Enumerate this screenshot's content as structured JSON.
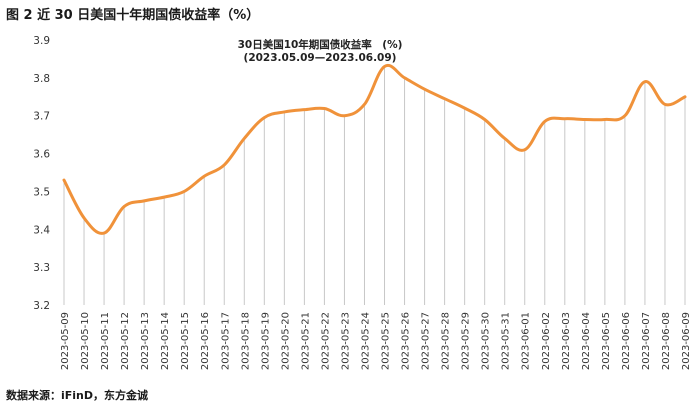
{
  "figure": {
    "title": "图 2  近 30 日美国十年期国债收益率（%）",
    "source": "数据来源：iFinD，东方金诚"
  },
  "chart_data": {
    "type": "line",
    "title": "30日美国10年期国债收益率　(%)",
    "subtitle": "(2023.05.09—2023.06.09)",
    "xlabel": "",
    "ylabel": "",
    "ylim": [
      3.2,
      3.9
    ],
    "yticks": [
      "3.2",
      "3.3",
      "3.4",
      "3.5",
      "3.6",
      "3.7",
      "3.8",
      "3.9"
    ],
    "grid": "vertical drop lines at each x value",
    "line_color": "#f0923a",
    "drop_line_color": "#c8c8c8",
    "series": [
      {
        "x": [
          "2023-05-09",
          "2023-05-10",
          "2023-05-11",
          "2023-05-12",
          "2023-05-13",
          "2023-05-14",
          "2023-05-15",
          "2023-05-16",
          "2023-05-17",
          "2023-05-18",
          "2023-05-19",
          "2023-05-20",
          "2023-05-21",
          "2023-05-22",
          "2023-05-23",
          "2023-05-24",
          "2023-05-25",
          "2023-05-26",
          "2023-05-27",
          "2023-05-28",
          "2023-05-29",
          "2023-05-30",
          "2023-05-31",
          "2023-06-01",
          "2023-06-02",
          "2023-06-03",
          "2023-06-04",
          "2023-06-05",
          "2023-06-06",
          "2023-06-07",
          "2023-06-08",
          "2023-06-09"
        ],
        "values": [
          3.53,
          3.43,
          3.39,
          3.46,
          3.475,
          3.485,
          3.5,
          3.54,
          3.57,
          3.64,
          3.695,
          3.71,
          3.716,
          3.719,
          3.7,
          3.73,
          3.83,
          3.8,
          3.77,
          3.745,
          3.72,
          3.69,
          3.64,
          3.61,
          3.685,
          3.692,
          3.69,
          3.69,
          3.7,
          3.79,
          3.73,
          3.75
        ]
      }
    ]
  }
}
